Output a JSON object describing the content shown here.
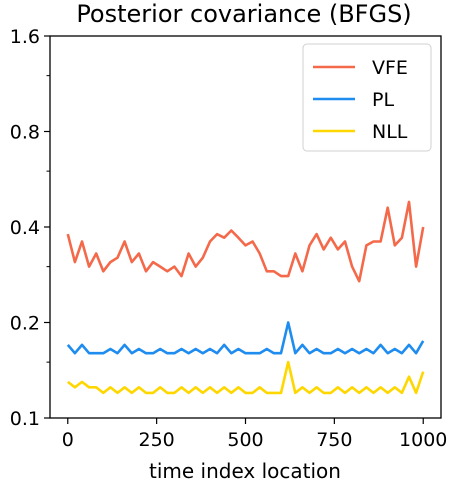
{
  "chart_data": {
    "type": "line",
    "title": "Posterior covariance (BFGS)",
    "xlabel": "time index location",
    "ylabel": "",
    "yscale": "log",
    "xlim": [
      -50,
      1050
    ],
    "ylim": [
      0.1,
      1.6
    ],
    "grid": false,
    "legend_position": "top-right",
    "x_ticks": [
      0,
      250,
      500,
      750,
      1000
    ],
    "x_tick_labels": [
      "0",
      "250",
      "500",
      "750",
      "1000"
    ],
    "y_ticks": [
      0.1,
      0.2,
      0.4,
      0.8,
      1.6
    ],
    "y_tick_labels": [
      "0.1",
      "0.2",
      "0.4",
      "0.8",
      "1.6"
    ],
    "y_minor_ticks": [
      0.15,
      0.3,
      0.6,
      1.2
    ],
    "x": [
      0,
      20,
      40,
      60,
      80,
      100,
      120,
      140,
      160,
      180,
      200,
      220,
      240,
      260,
      280,
      300,
      320,
      340,
      360,
      380,
      400,
      420,
      440,
      460,
      480,
      500,
      520,
      540,
      560,
      580,
      600,
      620,
      640,
      660,
      680,
      700,
      720,
      740,
      760,
      780,
      800,
      820,
      840,
      860,
      880,
      900,
      920,
      940,
      960,
      980,
      1000
    ],
    "series": [
      {
        "name": "VFE",
        "color": "#f4694a",
        "values": [
          0.38,
          0.31,
          0.36,
          0.3,
          0.33,
          0.29,
          0.31,
          0.32,
          0.36,
          0.31,
          0.33,
          0.29,
          0.31,
          0.3,
          0.29,
          0.3,
          0.28,
          0.33,
          0.3,
          0.32,
          0.36,
          0.38,
          0.37,
          0.39,
          0.37,
          0.35,
          0.36,
          0.33,
          0.29,
          0.29,
          0.28,
          0.28,
          0.33,
          0.29,
          0.35,
          0.38,
          0.34,
          0.37,
          0.34,
          0.36,
          0.3,
          0.27,
          0.35,
          0.36,
          0.36,
          0.46,
          0.35,
          0.37,
          0.48,
          0.3,
          0.4
        ]
      },
      {
        "name": "PL",
        "color": "#1f8cf0",
        "values": [
          0.17,
          0.16,
          0.17,
          0.16,
          0.16,
          0.16,
          0.165,
          0.16,
          0.17,
          0.16,
          0.165,
          0.16,
          0.16,
          0.165,
          0.16,
          0.16,
          0.165,
          0.16,
          0.165,
          0.16,
          0.165,
          0.16,
          0.17,
          0.16,
          0.165,
          0.16,
          0.16,
          0.16,
          0.165,
          0.16,
          0.16,
          0.2,
          0.16,
          0.17,
          0.16,
          0.165,
          0.16,
          0.16,
          0.165,
          0.16,
          0.165,
          0.16,
          0.165,
          0.16,
          0.17,
          0.16,
          0.165,
          0.16,
          0.17,
          0.16,
          0.175
        ]
      },
      {
        "name": "NLL",
        "color": "#ffd700",
        "values": [
          0.13,
          0.125,
          0.13,
          0.125,
          0.125,
          0.12,
          0.125,
          0.12,
          0.125,
          0.12,
          0.125,
          0.12,
          0.12,
          0.125,
          0.12,
          0.12,
          0.125,
          0.12,
          0.125,
          0.12,
          0.125,
          0.12,
          0.125,
          0.12,
          0.125,
          0.12,
          0.12,
          0.125,
          0.12,
          0.12,
          0.12,
          0.15,
          0.12,
          0.125,
          0.12,
          0.125,
          0.12,
          0.12,
          0.125,
          0.12,
          0.125,
          0.12,
          0.125,
          0.12,
          0.125,
          0.12,
          0.125,
          0.12,
          0.135,
          0.12,
          0.14
        ]
      }
    ]
  }
}
